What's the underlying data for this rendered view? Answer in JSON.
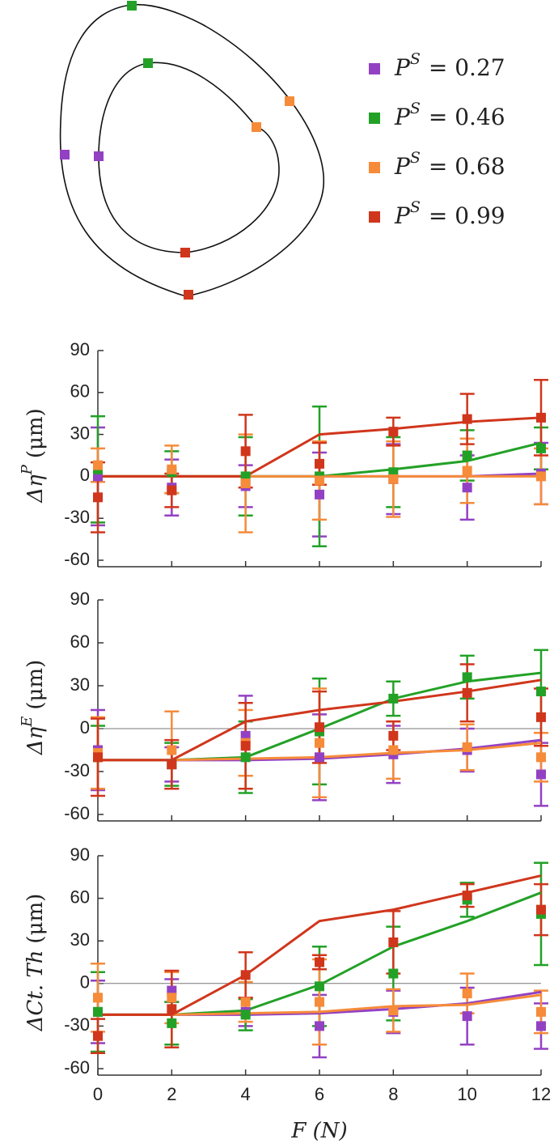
{
  "diagram": {
    "legend": [
      {
        "symbol": "P",
        "superscript": "S",
        "value": "= 0.27",
        "color": "#9341c3"
      },
      {
        "symbol": "P",
        "superscript": "S",
        "value": "= 0.46",
        "color": "#23a127"
      },
      {
        "symbol": "P",
        "superscript": "S",
        "value": "= 0.68",
        "color": "#f68b3a"
      },
      {
        "symbol": "P",
        "superscript": "S",
        "value": "= 0.99",
        "color": "#d0361c"
      }
    ]
  },
  "chart_data": [
    {
      "type": "line",
      "ylabel": "Δη",
      "ylabel_sup": "P",
      "ylabel_unit": "(μm)",
      "x": [
        0,
        2,
        4,
        6,
        8,
        10,
        12
      ],
      "xlim": [
        0,
        12
      ],
      "xticks": [
        0,
        2,
        4,
        6,
        8,
        10,
        12
      ],
      "show_xtick_labels": false,
      "ylim": [
        -60,
        90
      ],
      "yticks": [
        -60,
        -30,
        0,
        30,
        60,
        90
      ],
      "zero_line": false,
      "series": [
        {
          "color": "#9341c3",
          "values": [
            0,
            -8,
            -7,
            -13,
            -2,
            -8,
            2
          ],
          "errors": [
            35,
            20,
            15,
            30,
            25,
            23,
            22
          ],
          "fit": [
            0,
            0,
            0,
            0,
            0,
            0,
            2
          ]
        },
        {
          "color": "#23a127",
          "values": [
            5,
            3,
            0,
            0,
            3,
            15,
            20
          ],
          "errors": [
            38,
            15,
            28,
            50,
            25,
            18,
            15
          ],
          "fit": [
            0,
            0,
            0,
            0,
            5,
            11,
            24
          ]
        },
        {
          "color": "#f68b3a",
          "values": [
            8,
            5,
            -5,
            -3,
            -2,
            4,
            0
          ],
          "errors": [
            12,
            17,
            35,
            28,
            27,
            23,
            20
          ],
          "fit": [
            0,
            0,
            0,
            0,
            0,
            0,
            0
          ]
        },
        {
          "color": "#d0361c",
          "values": [
            -15,
            -10,
            18,
            9,
            32,
            41,
            42
          ],
          "errors": [
            25,
            12,
            26,
            15,
            10,
            18,
            27
          ],
          "fit": [
            0,
            0,
            0,
            30,
            34,
            39,
            42
          ]
        }
      ]
    },
    {
      "type": "line",
      "ylabel": "Δη",
      "ylabel_sup": "E",
      "ylabel_unit": "(μm)",
      "x": [
        0,
        2,
        4,
        6,
        8,
        10,
        12
      ],
      "xlim": [
        0,
        12
      ],
      "xticks": [
        0,
        2,
        4,
        6,
        8,
        10,
        12
      ],
      "show_xtick_labels": false,
      "ylim": [
        -60,
        90
      ],
      "yticks": [
        -60,
        -30,
        0,
        30,
        60,
        90
      ],
      "zero_line": true,
      "series": [
        {
          "color": "#9341c3",
          "values": [
            -15,
            -25,
            -5,
            -20,
            -18,
            -15,
            -32
          ],
          "errors": [
            28,
            12,
            28,
            30,
            20,
            15,
            22
          ],
          "fit": [
            -22,
            -22,
            -22,
            -21,
            -18,
            -14,
            -8
          ]
        },
        {
          "color": "#23a127",
          "values": [
            -20,
            -25,
            -20,
            -2,
            21,
            36,
            26
          ],
          "errors": [
            22,
            15,
            25,
            37,
            12,
            15,
            29
          ],
          "fit": [
            -22,
            -22,
            -20,
            0,
            21,
            33,
            39
          ]
        },
        {
          "color": "#f68b3a",
          "values": [
            -17,
            -15,
            -10,
            -10,
            -15,
            -13,
            -20
          ],
          "errors": [
            25,
            27,
            23,
            38,
            20,
            16,
            17
          ],
          "fit": [
            -22,
            -22,
            -21,
            -20,
            -17,
            -15,
            -10
          ]
        },
        {
          "color": "#d0361c",
          "values": [
            -20,
            -25,
            -12,
            1,
            -5,
            25,
            8
          ],
          "errors": [
            27,
            17,
            30,
            25,
            10,
            20,
            20
          ],
          "fit": [
            -22,
            -22,
            5,
            13,
            19,
            26,
            34
          ]
        }
      ]
    },
    {
      "type": "line",
      "ylabel": "ΔCt. Th",
      "ylabel_unit": "(μm)",
      "xlabel": "F (N)",
      "x": [
        0,
        2,
        4,
        6,
        8,
        10,
        12
      ],
      "xlim": [
        0,
        12
      ],
      "xticks": [
        0,
        2,
        4,
        6,
        8,
        10,
        12
      ],
      "show_xtick_labels": true,
      "ylim": [
        -60,
        90
      ],
      "yticks": [
        -60,
        -30,
        0,
        30,
        60,
        90
      ],
      "zero_line": true,
      "series": [
        {
          "color": "#9341c3",
          "values": [
            -20,
            -5,
            -20,
            -30,
            -20,
            -23,
            -30
          ],
          "errors": [
            22,
            8,
            10,
            22,
            15,
            20,
            16
          ],
          "fit": [
            -22,
            -22,
            -22,
            -21,
            -18,
            -14,
            -6
          ]
        },
        {
          "color": "#23a127",
          "values": [
            -20,
            -28,
            -22,
            -2,
            7,
            59,
            49
          ],
          "errors": [
            28,
            15,
            11,
            28,
            33,
            12,
            36
          ],
          "fit": [
            -22,
            -22,
            -19,
            -1,
            26,
            44,
            64
          ]
        },
        {
          "color": "#f68b3a",
          "values": [
            -10,
            -10,
            -13,
            -13,
            -19,
            -7,
            -20
          ],
          "errors": [
            24,
            18,
            14,
            30,
            15,
            14,
            15
          ],
          "fit": [
            -22,
            -22,
            -21,
            -20,
            -16,
            -15,
            -8
          ]
        },
        {
          "color": "#d0361c",
          "values": [
            -37,
            -18,
            6,
            15,
            29,
            62,
            52
          ],
          "errors": [
            12,
            27,
            16,
            5,
            22,
            8,
            18
          ],
          "fit": [
            -22,
            -22,
            6,
            44,
            52,
            64,
            76
          ]
        }
      ]
    }
  ]
}
